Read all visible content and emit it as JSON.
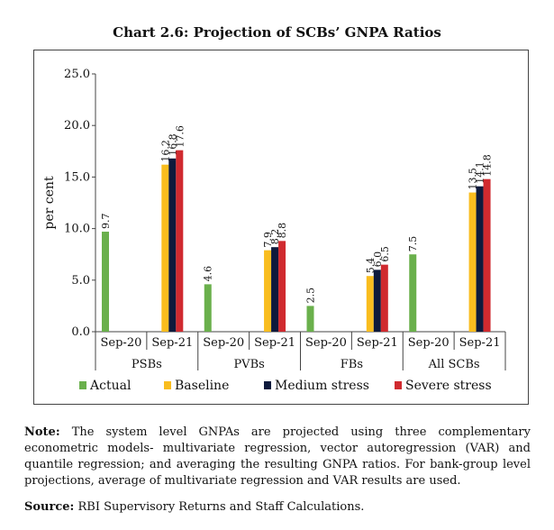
{
  "title": "Chart 2.6: Projection of SCBs’ GNPA Ratios",
  "note_label": "Note:",
  "note_text": "The system level GNPAs are projected using three complementary econometric models- multivariate regression, vector autoregression (VAR) and quantile regression; and averaging the resulting GNPA ratios. For bank-group level projections, average of multivariate regression and VAR results are used.",
  "source_label": "Source:",
  "source_text": "RBI Supervisory Returns and Staff Calculations.",
  "chart_data": {
    "type": "bar",
    "ylabel": "per cent",
    "ylim": [
      0,
      25
    ],
    "yticks": [
      "0.0",
      "5.0",
      "10.0",
      "15.0",
      "20.0",
      "25.0"
    ],
    "groups": [
      "PSBs",
      "PVBs",
      "FBs",
      "All SCBs"
    ],
    "subcategories": [
      "Sep-20",
      "Sep-21"
    ],
    "legend_position": "bottom",
    "series": [
      {
        "name": "Actual",
        "color": "#6ab04c",
        "values": [
          9.7,
          4.6,
          2.5,
          7.5
        ],
        "labels": [
          "9.7",
          "4.6",
          "2.5",
          "7.5"
        ]
      },
      {
        "name": "Baseline",
        "color": "#f9bd1f",
        "values": [
          16.2,
          7.9,
          5.4,
          13.5
        ],
        "labels": [
          "16.2",
          "7.9",
          "5.4",
          "13.5"
        ]
      },
      {
        "name": "Medium stress",
        "color": "#0e1a3c",
        "values": [
          16.8,
          8.2,
          6.0,
          14.1
        ],
        "labels": [
          "16.8",
          "8.2",
          "6.0",
          "14.1"
        ]
      },
      {
        "name": "Severe stress",
        "color": "#d02a2f",
        "values": [
          17.6,
          8.8,
          6.5,
          14.8
        ],
        "labels": [
          "17.6",
          "8.8",
          "6.5",
          "14.8"
        ]
      }
    ]
  }
}
